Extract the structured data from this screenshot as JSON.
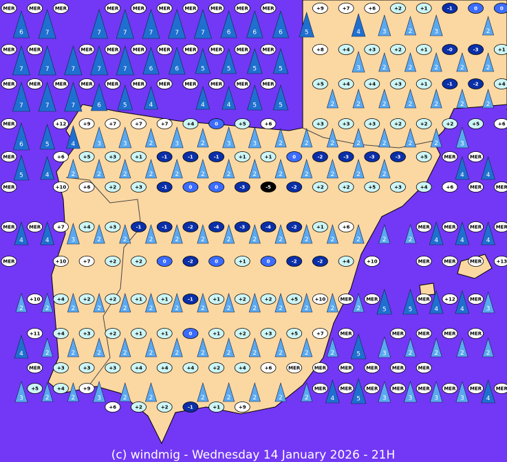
{
  "caption": "(c) windmig - Wednesday 14 January 2026 - 21H",
  "temperatures": [
    [
      "MER",
      "MER",
      "MER",
      null,
      "MER",
      "MER",
      "MER",
      "MER",
      "MER",
      "MER",
      "MER",
      null,
      "+9",
      "+7",
      "+6",
      "+2",
      "+1",
      "-1",
      "0",
      "0"
    ],
    [
      "MER",
      "MER",
      null,
      "MER",
      "MER",
      "MER",
      "MER",
      "MER",
      "MER",
      "MER",
      "MER",
      null,
      "+8",
      "+4",
      "+3",
      "+2",
      "+1",
      "-0",
      "-3",
      "+1"
    ],
    [
      "MER",
      "MER",
      "MER",
      "MER",
      "MER",
      "MER",
      "MER",
      "MER",
      "MER",
      "MER",
      "MER",
      null,
      "+5",
      "+4",
      "+4",
      "+3",
      "+1",
      "-1",
      "-2",
      "+4"
    ],
    [
      "MER",
      null,
      "+12",
      "+9",
      "+7",
      "+7",
      "+7",
      "+4",
      "0",
      "+5",
      "+6",
      null,
      "+3",
      "+3",
      "+3",
      "+2",
      "+2",
      "+2",
      "+5",
      "+6"
    ],
    [
      "MER",
      null,
      "+6",
      "+5",
      "+3",
      "+1",
      "-1",
      "-1",
      "-1",
      "+1",
      "+1",
      "0",
      "-2",
      "-3",
      "-3",
      "-3",
      "+5",
      "MER",
      "MER",
      null
    ],
    [
      "MER",
      null,
      "+10",
      "+6",
      "+2",
      "+3",
      "-1",
      "0",
      "0",
      "-3",
      "-5",
      "-2",
      "+2",
      "+2",
      "+5",
      "+3",
      "+4",
      "+6",
      "MER",
      "MER"
    ],
    [
      "MER",
      "MER",
      "+7",
      "+4",
      "+3",
      "-1",
      "-1",
      "-2",
      "-4",
      "-3",
      "-4",
      "-2",
      "+1",
      "+6",
      null,
      null,
      "MER",
      "MER",
      "MER",
      "MER"
    ],
    [
      "MER",
      null,
      "+10",
      "+7",
      "+2",
      "+2",
      "0",
      "-2",
      "0",
      "+1",
      "0",
      "-2",
      "-2",
      "+4",
      "+10",
      null,
      "MER",
      "MER",
      "MER",
      "+13"
    ],
    [
      null,
      "+10",
      "+4",
      "+2",
      "+2",
      "+1",
      "+1",
      "-1",
      "+1",
      "+2",
      "+2",
      "+5",
      "+10",
      "MER",
      "MER",
      null,
      "MER",
      "+12",
      "MER",
      null
    ],
    [
      null,
      "+11",
      "+4",
      "+3",
      "+2",
      "+1",
      "+1",
      "0",
      "+1",
      "+2",
      "+3",
      "+5",
      "+7",
      "MER",
      null,
      "MER",
      "MER",
      "MER",
      "MER",
      null
    ],
    [
      null,
      "MER",
      "+3",
      "+3",
      "+3",
      "+4",
      "+4",
      "+4",
      "+2",
      "+4",
      "+6",
      "MER",
      "MER",
      "MER",
      "MER",
      "MER",
      "MER",
      null,
      null,
      null
    ],
    [
      null,
      "+5",
      "+4",
      "+9",
      null,
      null,
      null,
      null,
      null,
      null,
      null,
      null,
      "MER",
      "MER",
      "MER",
      "MER",
      "MER",
      "MER",
      "MER",
      "MER"
    ],
    [
      null,
      null,
      null,
      null,
      "+6",
      "+2",
      "+2",
      "-1",
      "+1",
      "+9",
      null,
      null,
      null,
      null,
      null,
      null,
      null,
      null,
      null,
      null
    ]
  ],
  "wind": [
    [
      6,
      7,
      null,
      7,
      7,
      7,
      7,
      7,
      6,
      6,
      6,
      5,
      null,
      4,
      3,
      2,
      3,
      null,
      2,
      2
    ],
    [
      7,
      7,
      7,
      7,
      7,
      6,
      6,
      5,
      5,
      5,
      5,
      null,
      null,
      3,
      2,
      2,
      2,
      2,
      2,
      2
    ],
    [
      7,
      7,
      7,
      6,
      5,
      4,
      null,
      4,
      4,
      5,
      5,
      null,
      2,
      2,
      2,
      2,
      2,
      2,
      2,
      5
    ],
    [
      6,
      5,
      4,
      3,
      3,
      2,
      3,
      2,
      3,
      3,
      2,
      2,
      2,
      2,
      2,
      2,
      2,
      3,
      null,
      null
    ],
    [
      5,
      4,
      2,
      2,
      2,
      2,
      2,
      2,
      2,
      2,
      2,
      2,
      2,
      2,
      2,
      null,
      null,
      4,
      4,
      4
    ],
    [
      4,
      4,
      3,
      2,
      2,
      2,
      2,
      2,
      2,
      2,
      2,
      2,
      2,
      2,
      2,
      2,
      4,
      4,
      4,
      4
    ],
    [
      2,
      2,
      2,
      2,
      2,
      2,
      2,
      2,
      2,
      2,
      2,
      2,
      2,
      2,
      5,
      5,
      4,
      4,
      3,
      3
    ],
    [
      4,
      2,
      2,
      2,
      2,
      2,
      2,
      2,
      2,
      2,
      2,
      2,
      2,
      5,
      3,
      2,
      2,
      2,
      2,
      2
    ],
    [
      3,
      2,
      2,
      3,
      2,
      2,
      null,
      2,
      2,
      2,
      2,
      2,
      4,
      5,
      3,
      3,
      3,
      3,
      4,
      4
    ]
  ]
}
